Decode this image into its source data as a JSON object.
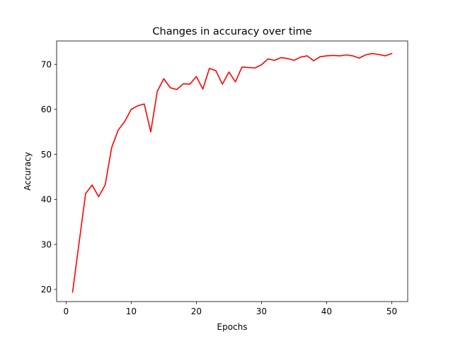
{
  "chart_data": {
    "type": "line",
    "title": "Changes in accuracy over time",
    "xlabel": "Epochs",
    "ylabel": "Accuracy",
    "xlim": [
      -1.45,
      52.45
    ],
    "ylim": [
      17.3,
      75.2
    ],
    "xticks": [
      0,
      10,
      20,
      30,
      40,
      50
    ],
    "yticks": [
      20,
      30,
      40,
      50,
      60,
      70
    ],
    "grid": false,
    "line_color": "#ff0000",
    "series": [
      {
        "x": [
          1,
          2,
          3,
          4,
          5,
          6,
          7,
          8,
          9,
          10,
          11,
          12,
          13,
          14,
          15,
          16,
          17,
          18,
          19,
          20,
          21,
          22,
          23,
          24,
          25,
          26,
          27,
          28,
          29,
          30,
          31,
          32,
          33,
          34,
          35,
          36,
          37,
          38,
          39,
          40,
          41,
          42,
          43,
          44,
          45,
          46,
          47,
          48,
          49,
          50
        ],
        "values": [
          19.4,
          30.4,
          41.3,
          43.2,
          40.6,
          43.2,
          51.5,
          55.4,
          57.3,
          60.0,
          60.8,
          61.2,
          55.0,
          64.0,
          66.8,
          64.8,
          64.4,
          65.7,
          65.6,
          67.3,
          64.5,
          69.1,
          68.6,
          65.6,
          68.3,
          66.1,
          69.4,
          69.3,
          69.2,
          69.9,
          71.2,
          70.9,
          71.5,
          71.3,
          70.9,
          71.6,
          71.9,
          70.8,
          71.7,
          71.9,
          72.0,
          71.9,
          72.1,
          71.9,
          71.4,
          72.1,
          72.4,
          72.2,
          71.9,
          72.4
        ]
      }
    ]
  }
}
